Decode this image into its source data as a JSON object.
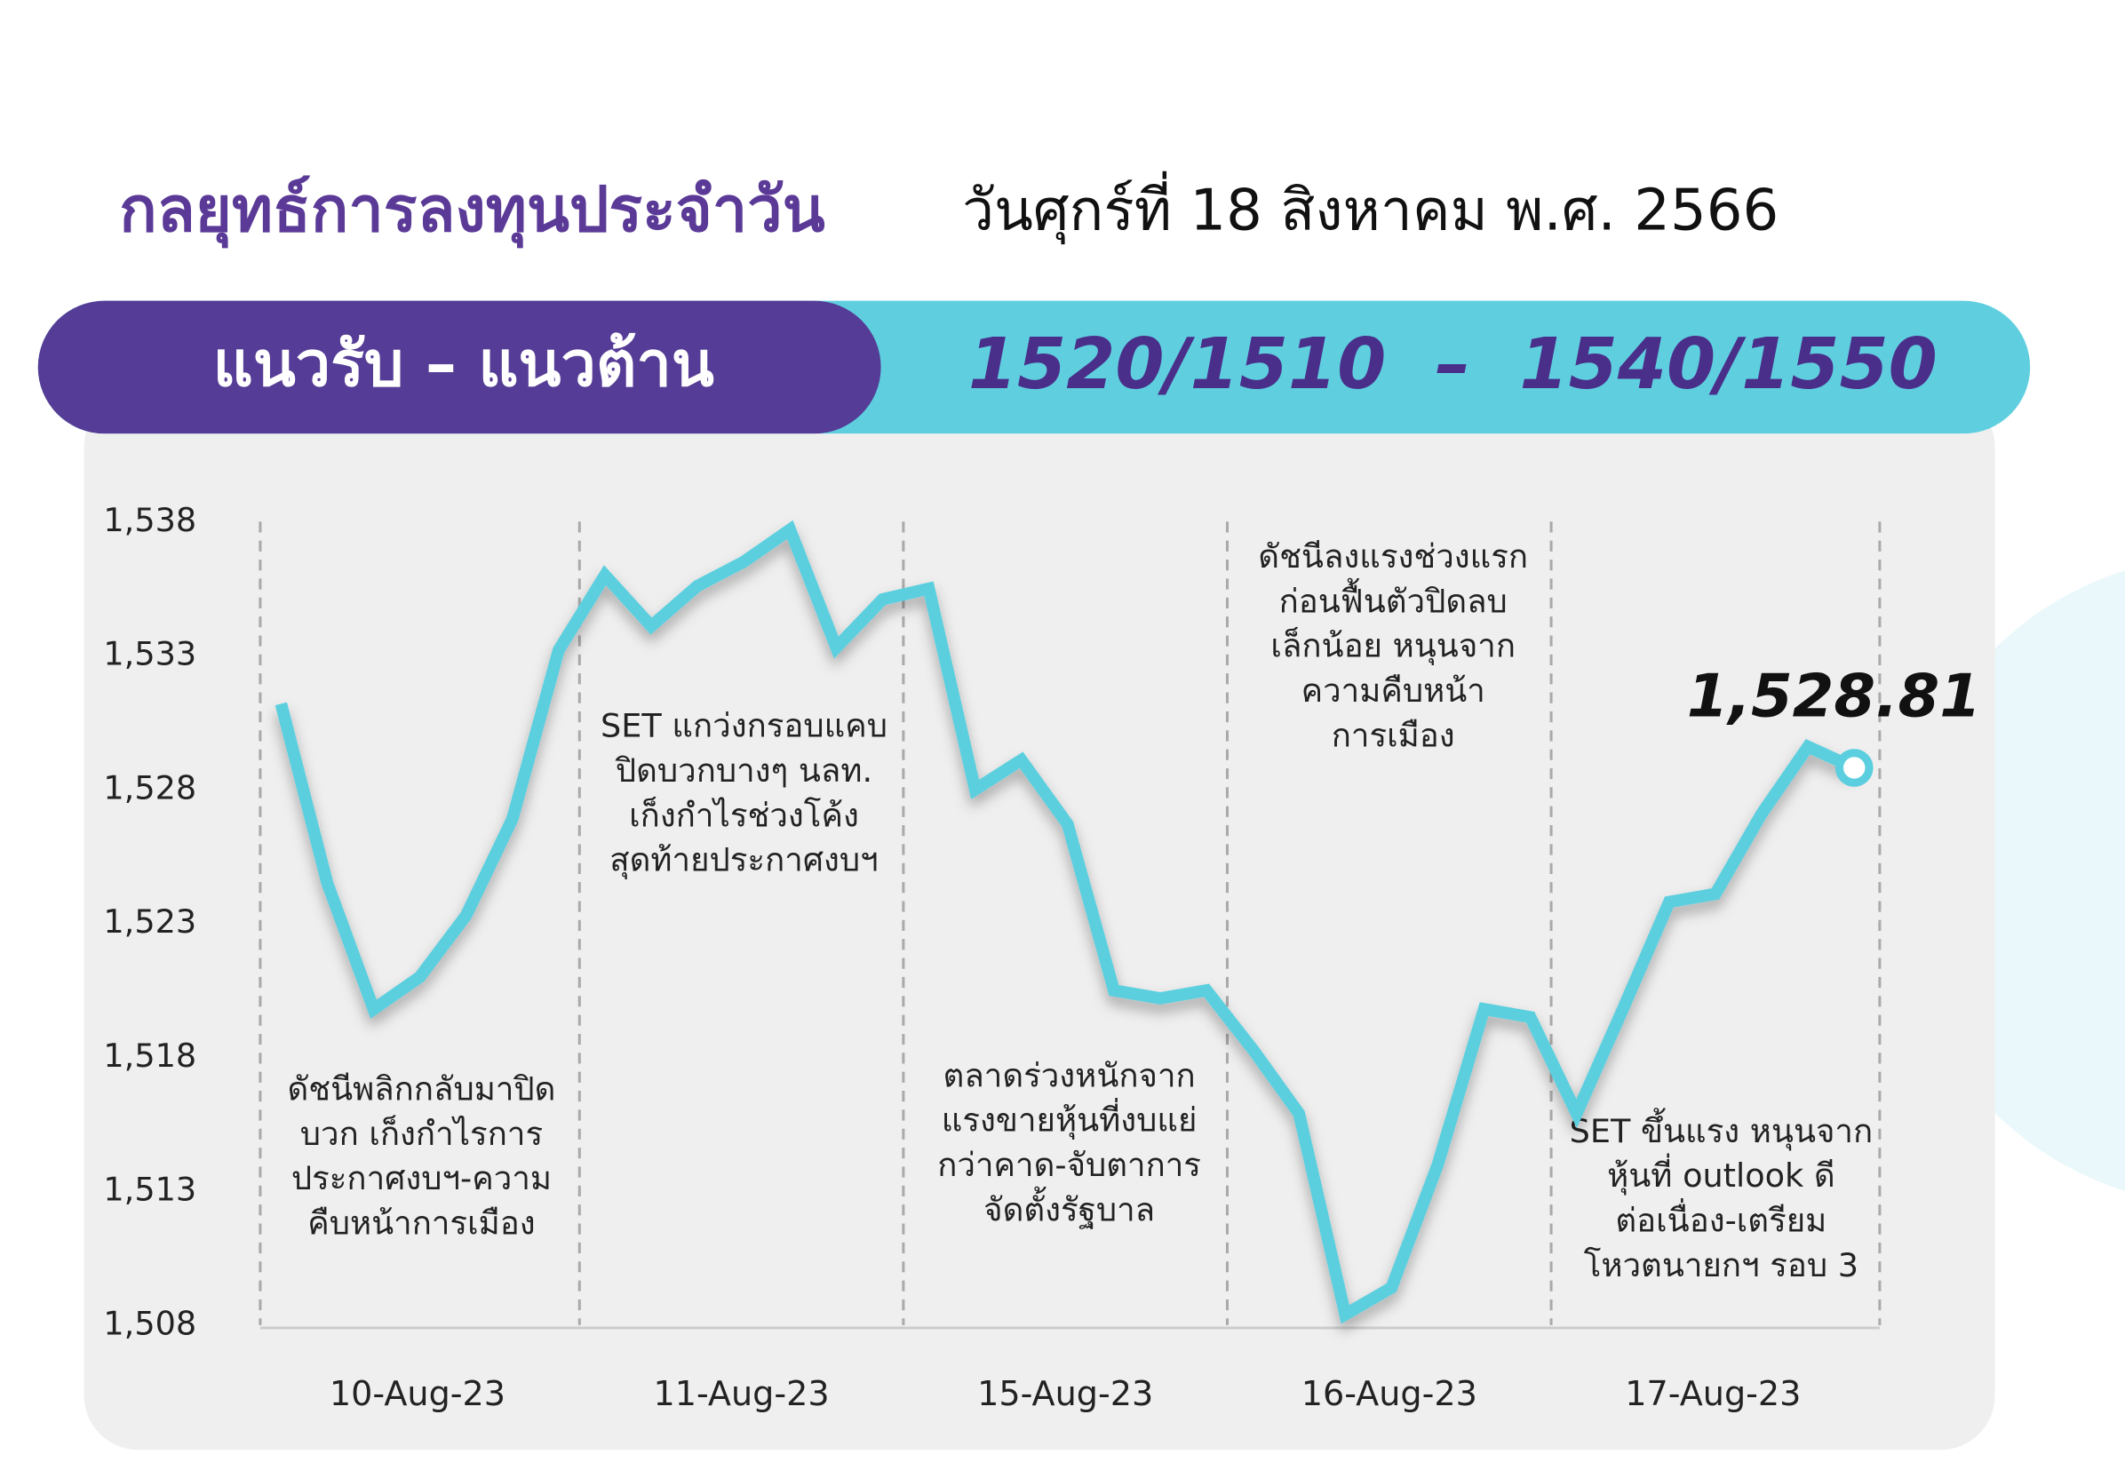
{
  "chart_data": {
    "type": "line",
    "title": "กลยุทธ์การลงทุนประจำวัน",
    "subtitle": "วันศุกร์ที่ 18 สิงหาคม พ.ศ. 2566",
    "range_label": "แนวรับ – แนวต้าน",
    "range_value": "1520/1510  –  1540/1550",
    "color": "#5bcfdf",
    "values": [
      1531.2,
      1524.5,
      1519.8,
      1521.0,
      1523.3,
      1526.9,
      1533.2,
      1536.0,
      1534.1,
      1535.6,
      1536.5,
      1537.7,
      1533.3,
      1535.1,
      1535.5,
      1528.0,
      1529.1,
      1526.7,
      1520.5,
      1520.2,
      1520.5,
      1518.3,
      1515.9,
      1508.4,
      1509.4,
      1514.0,
      1519.8,
      1519.5,
      1515.9,
      1519.8,
      1523.8,
      1524.1,
      1527.1,
      1529.6,
      1528.81
    ],
    "value_labels": [
      null,
      null,
      null,
      null,
      null,
      null,
      null,
      null,
      null,
      null,
      null,
      null,
      null,
      null,
      null,
      null,
      null,
      null,
      null,
      null,
      null,
      null,
      null,
      null,
      null,
      null,
      null,
      null,
      null,
      null,
      null,
      null,
      null,
      null,
      "1,528.81"
    ],
    "ylim": [
      1508,
      1538
    ],
    "yticks": [
      {
        "value": 1508,
        "label": "1,508"
      },
      {
        "value": 1513,
        "label": "1,513"
      },
      {
        "value": 1518,
        "label": "1,518"
      },
      {
        "value": 1523,
        "label": "1,523"
      },
      {
        "value": 1528,
        "label": "1,528"
      },
      {
        "value": 1533,
        "label": "1,533"
      },
      {
        "value": 1538,
        "label": "1,538"
      }
    ],
    "xlim": [
      -0.45,
      34.55
    ],
    "xticks": [
      {
        "value": 2.95,
        "label": "10-Aug-23"
      },
      {
        "value": 9.95,
        "label": "11-Aug-23"
      },
      {
        "value": 16.95,
        "label": "15-Aug-23"
      },
      {
        "value": 23.95,
        "label": "16-Aug-23"
      },
      {
        "value": 30.95,
        "label": "17-Aug-23"
      }
    ],
    "annotations": [
      [
        "ดัชนีพลิกกลับมาปิด",
        "บวก เก็งกำไรการ",
        "ประกาศงบฯ-ความ",
        "คืบหน้าการเมือง"
      ],
      [
        "SET แกว่งกรอบแคบ",
        "ปิดบวกบางๆ นลท.",
        "เก็งกำไรช่วงโค้ง",
        "สุดท้ายประกาศงบฯ"
      ],
      [
        "ตลาดร่วงหนักจาก",
        "แรงขายหุ้นที่งบแย่",
        "กว่าคาด-จับตาการ",
        "จัดตั้งรัฐบาล"
      ],
      [
        "ดัชนีลงแรงช่วงแรก",
        "ก่อนฟื้นตัวปิดลบ",
        "เล็กน้อย หนุนจาก",
        "ความคืบหน้า",
        "การเมือง"
      ],
      [
        "SET ขึ้นแรง หนุนจาก",
        "หุ้นที่ outlook ดี",
        "ต่อเนื่อง-เตรียม",
        "โหวตนายกฯ รอบ 3"
      ]
    ]
  }
}
